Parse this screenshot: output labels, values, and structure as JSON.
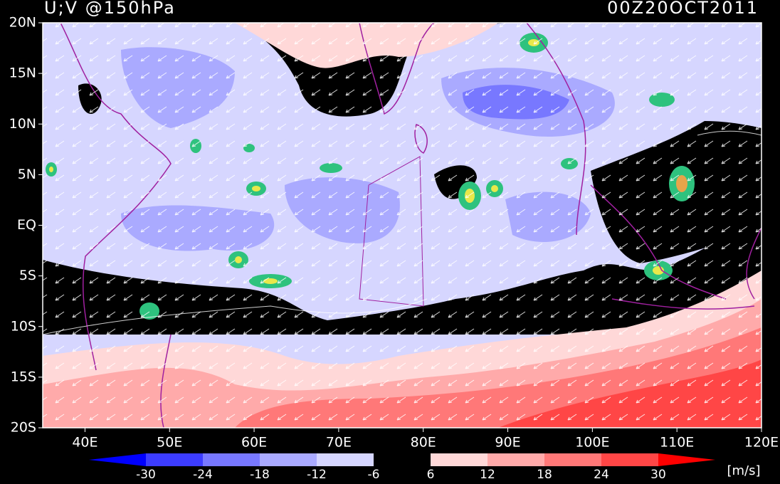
{
  "header": {
    "title": "U;V @150hPa",
    "time": "00Z20OCT2011"
  },
  "map": {
    "lonlim": [
      35,
      120
    ],
    "latlim": [
      -20,
      20
    ],
    "lon_ticks": [
      {
        "value": 40,
        "label": "40E"
      },
      {
        "value": 50,
        "label": "50E"
      },
      {
        "value": 60,
        "label": "60E"
      },
      {
        "value": 70,
        "label": "70E"
      },
      {
        "value": 80,
        "label": "80E"
      },
      {
        "value": 90,
        "label": "90E"
      },
      {
        "value": 100,
        "label": "100E"
      },
      {
        "value": 110,
        "label": "110E"
      },
      {
        "value": 120,
        "label": "120E"
      }
    ],
    "lat_ticks": [
      {
        "value": 20,
        "label": "20N"
      },
      {
        "value": 15,
        "label": "15N"
      },
      {
        "value": 10,
        "label": "10N"
      },
      {
        "value": 5,
        "label": "5N"
      },
      {
        "value": 0,
        "label": "EQ"
      },
      {
        "value": -5,
        "label": "5S"
      },
      {
        "value": -10,
        "label": "10S"
      },
      {
        "value": -15,
        "label": "15S"
      },
      {
        "value": -20,
        "label": "20S"
      }
    ]
  },
  "colorbar": {
    "boundaries": [
      -30,
      -24,
      -18,
      -12,
      -6,
      6,
      12,
      18,
      24,
      30
    ],
    "colors": [
      "#0000ff",
      "#3c3cff",
      "#7878ff",
      "#aaaaff",
      "#d6d6ff",
      "#000000",
      "#ffd8d8",
      "#ffaaaa",
      "#ff7878",
      "#ff4646",
      "#ff0000"
    ],
    "units": "[m/s]"
  }
}
